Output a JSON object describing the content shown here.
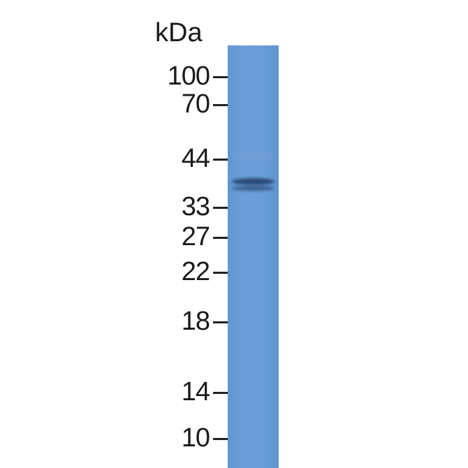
{
  "unit_label": "kDa",
  "markers": [
    {
      "label": "100",
      "kda": 100
    },
    {
      "label": "70",
      "kda": 70
    },
    {
      "label": "44",
      "kda": 44
    },
    {
      "label": "33",
      "kda": 33
    },
    {
      "label": "27",
      "kda": 27
    },
    {
      "label": "22",
      "kda": 22
    },
    {
      "label": "18",
      "kda": 18
    },
    {
      "label": "14",
      "kda": 14
    },
    {
      "label": "10",
      "kda": 10
    }
  ],
  "colors": {
    "membrane": "#6a9ed8",
    "band": "#1f3f66",
    "text": "#1a1a1a"
  },
  "lanes": [
    {
      "bands_kda": [
        38,
        36
      ]
    }
  ]
}
